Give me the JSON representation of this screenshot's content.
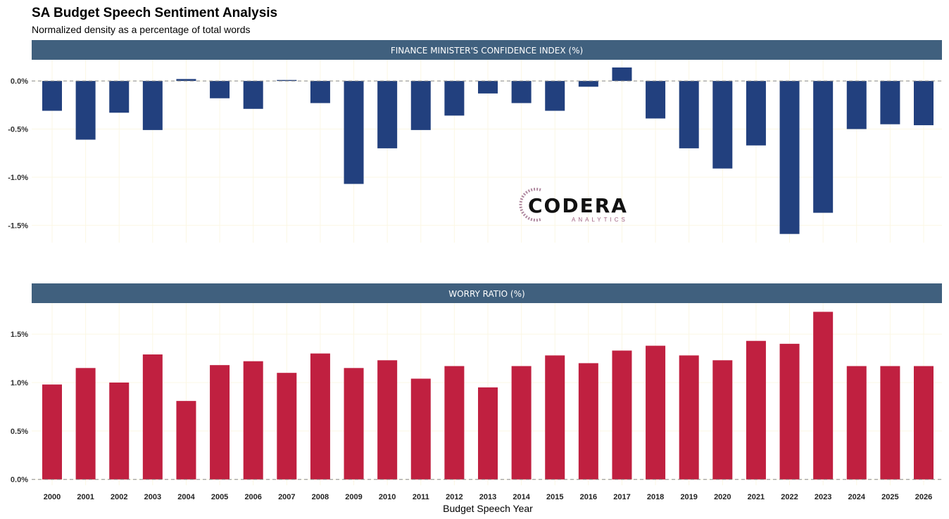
{
  "chart_data": {
    "type": "bar",
    "title": "SA Budget Speech Sentiment Analysis",
    "subtitle": "Normalized density as a percentage of total words",
    "xlabel": "Budget Speech Year",
    "categories": [
      "2000",
      "2001",
      "2002",
      "2003",
      "2004",
      "2005",
      "2006",
      "2007",
      "2008",
      "2009",
      "2010",
      "2011",
      "2012",
      "2013",
      "2014",
      "2015",
      "2016",
      "2017",
      "2018",
      "2019",
      "2020",
      "2021",
      "2022",
      "2023",
      "2024",
      "2025",
      "2026"
    ],
    "panels": [
      {
        "name": "FINANCE MINISTER'S CONFIDENCE INDEX (%)",
        "color": "#22407e",
        "ylim": [
          -1.68,
          0.22
        ],
        "yticks": [
          0.0,
          -0.5,
          -1.0,
          -1.5
        ],
        "ytick_labels": [
          "0.0%",
          "-0.5%",
          "-1.0%",
          "-1.5%"
        ],
        "values": [
          -0.31,
          -0.61,
          -0.33,
          -0.51,
          0.02,
          -0.18,
          -0.29,
          0.01,
          -0.23,
          -1.07,
          -0.7,
          -0.51,
          -0.36,
          -0.13,
          -0.23,
          -0.31,
          -0.06,
          0.14,
          -0.39,
          -0.7,
          -0.91,
          -0.67,
          -1.59,
          -1.37,
          -0.5,
          -0.45,
          -0.46
        ]
      },
      {
        "name": "WORRY RATIO (%)",
        "color": "#c02040",
        "ylim": [
          -0.06,
          1.82
        ],
        "yticks": [
          0.0,
          0.5,
          1.0,
          1.5
        ],
        "ytick_labels": [
          "0.0%",
          "0.5%",
          "1.0%",
          "1.5%"
        ],
        "values": [
          0.98,
          1.15,
          1.0,
          1.29,
          0.81,
          1.18,
          1.22,
          1.1,
          1.3,
          1.15,
          1.23,
          1.04,
          1.17,
          0.95,
          1.17,
          1.28,
          1.2,
          1.33,
          1.38,
          1.28,
          1.23,
          1.43,
          1.4,
          1.73,
          1.17,
          1.17,
          1.17
        ]
      }
    ],
    "grid": true,
    "legend": "none"
  },
  "logo": {
    "name": "CODERA",
    "sub": "ANALYTICS"
  },
  "colors": {
    "strip": "#40607e",
    "zero_line": "#888888",
    "grid": "#fbf7e4"
  }
}
